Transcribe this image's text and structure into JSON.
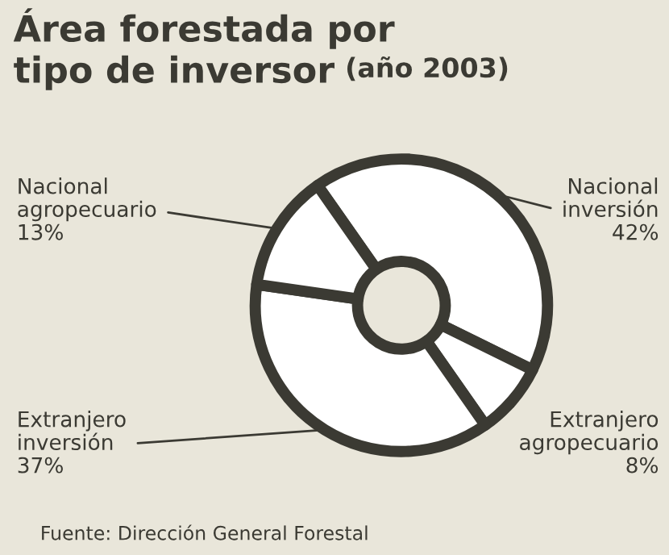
{
  "chart_data": {
    "type": "donut",
    "title": "Área forestada por\ntipo de inversor",
    "subtitle": "(año 2003)",
    "categories": [
      "Nacional inversión",
      "Extranjero agropecuario",
      "Extranjero inversión",
      "Nacional agropecuario"
    ],
    "values": [
      42,
      8,
      37,
      13
    ],
    "value_labels": [
      "42%",
      "8%",
      "37%",
      "13%"
    ],
    "colors": [
      "#ffffff",
      "#ffffff",
      "#ffffff",
      "#ffffff"
    ],
    "annotations": [
      "Fuente: Dirección General Forestal"
    ]
  }
}
